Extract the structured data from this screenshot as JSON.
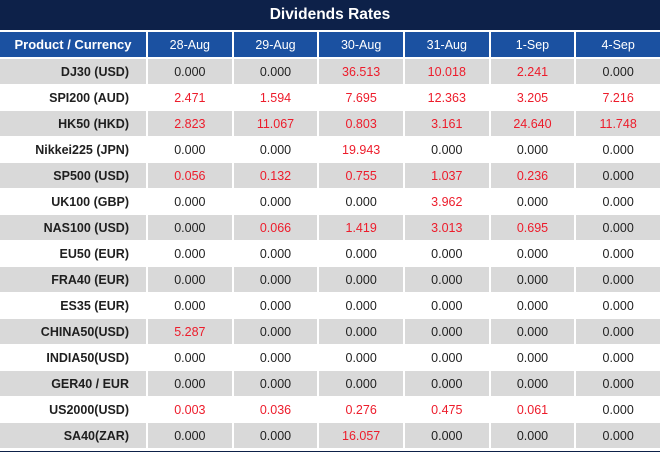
{
  "title": "Dividends Rates",
  "colors": {
    "navy": "#0d2149",
    "header_blue": "#1b51a1",
    "row_gray": "#d9d9d9",
    "row_white": "#ffffff",
    "value_red": "#ed1c2b",
    "value_black": "#1f1f1f"
  },
  "chart_data": {
    "type": "table",
    "title": "Dividends Rates",
    "columns": [
      "Product / Currency",
      "28-Aug",
      "29-Aug",
      "30-Aug",
      "31-Aug",
      "1-Sep",
      "4-Sep"
    ],
    "rows": [
      {
        "product": "DJ30 (USD)",
        "values": [
          "0.000",
          "0.000",
          "36.513",
          "10.018",
          "2.241",
          "0.000"
        ]
      },
      {
        "product": "SPI200 (AUD)",
        "values": [
          "2.471",
          "1.594",
          "7.695",
          "12.363",
          "3.205",
          "7.216"
        ]
      },
      {
        "product": "HK50 (HKD)",
        "values": [
          "2.823",
          "11.067",
          "0.803",
          "3.161",
          "24.640",
          "11.748"
        ]
      },
      {
        "product": "Nikkei225 (JPN)",
        "values": [
          "0.000",
          "0.000",
          "19.943",
          "0.000",
          "0.000",
          "0.000"
        ]
      },
      {
        "product": "SP500 (USD)",
        "values": [
          "0.056",
          "0.132",
          "0.755",
          "1.037",
          "0.236",
          "0.000"
        ]
      },
      {
        "product": "UK100 (GBP)",
        "values": [
          "0.000",
          "0.000",
          "0.000",
          "3.962",
          "0.000",
          "0.000"
        ]
      },
      {
        "product": "NAS100 (USD)",
        "values": [
          "0.000",
          "0.066",
          "1.419",
          "3.013",
          "0.695",
          "0.000"
        ]
      },
      {
        "product": "EU50 (EUR)",
        "values": [
          "0.000",
          "0.000",
          "0.000",
          "0.000",
          "0.000",
          "0.000"
        ]
      },
      {
        "product": "FRA40 (EUR)",
        "values": [
          "0.000",
          "0.000",
          "0.000",
          "0.000",
          "0.000",
          "0.000"
        ]
      },
      {
        "product": "ES35 (EUR)",
        "values": [
          "0.000",
          "0.000",
          "0.000",
          "0.000",
          "0.000",
          "0.000"
        ]
      },
      {
        "product": "CHINA50(USD)",
        "values": [
          "5.287",
          "0.000",
          "0.000",
          "0.000",
          "0.000",
          "0.000"
        ]
      },
      {
        "product": "INDIA50(USD)",
        "values": [
          "0.000",
          "0.000",
          "0.000",
          "0.000",
          "0.000",
          "0.000"
        ]
      },
      {
        "product": "GER40 / EUR",
        "values": [
          "0.000",
          "0.000",
          "0.000",
          "0.000",
          "0.000",
          "0.000"
        ]
      },
      {
        "product": "US2000(USD)",
        "values": [
          "0.003",
          "0.036",
          "0.276",
          "0.475",
          "0.061",
          "0.000"
        ]
      },
      {
        "product": "SA40(ZAR)",
        "values": [
          "0.000",
          "0.000",
          "16.057",
          "0.000",
          "0.000",
          "0.000"
        ]
      }
    ],
    "style_notes": {
      "zero_value_color": "black",
      "nonzero_value_color": "red",
      "row_striping": "odd rows gray, even rows white",
      "legend_position": "none",
      "grid": "white 2px cell separators"
    }
  }
}
